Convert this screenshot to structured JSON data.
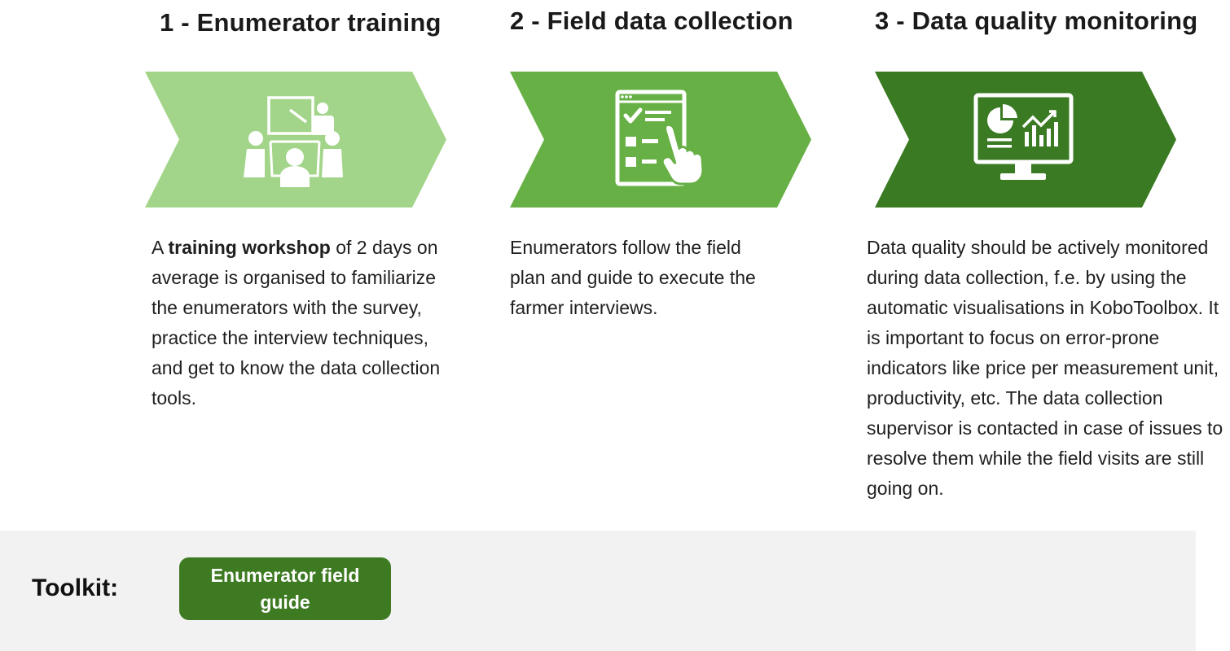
{
  "steps": [
    {
      "title": "1 - Enumerator training",
      "color": "#a2d589",
      "icon": "presentation-meeting-icon",
      "desc_prefix": "A ",
      "desc_bold": "training workshop",
      "desc_rest": " of 2 days on average is organised to familiarize the enumerators with the survey, practice the interview techniques, and get to know the data collection tools."
    },
    {
      "title": "2 - Field data collection",
      "color": "#67b045",
      "icon": "checklist-tap-icon",
      "desc": "Enumerators follow the field plan and guide to execute the farmer interviews."
    },
    {
      "title": "3 - Data quality monitoring",
      "color": "#3a7a22",
      "icon": "analytics-monitor-icon",
      "desc": "Data quality should be actively monitored during data collection, f.e. by using the automatic visualisations in KoboToolbox. It is important to focus on error-prone indicators like price per measurement unit, productivity, etc. The data collection supervisor is contacted in case of issues to resolve them while the field visits are still going on."
    }
  ],
  "toolkit": {
    "label": "Toolkit:",
    "button_label": "Enumerator field guide",
    "button_color": "#3e7a22",
    "panel_color": "#f2f2f2"
  }
}
